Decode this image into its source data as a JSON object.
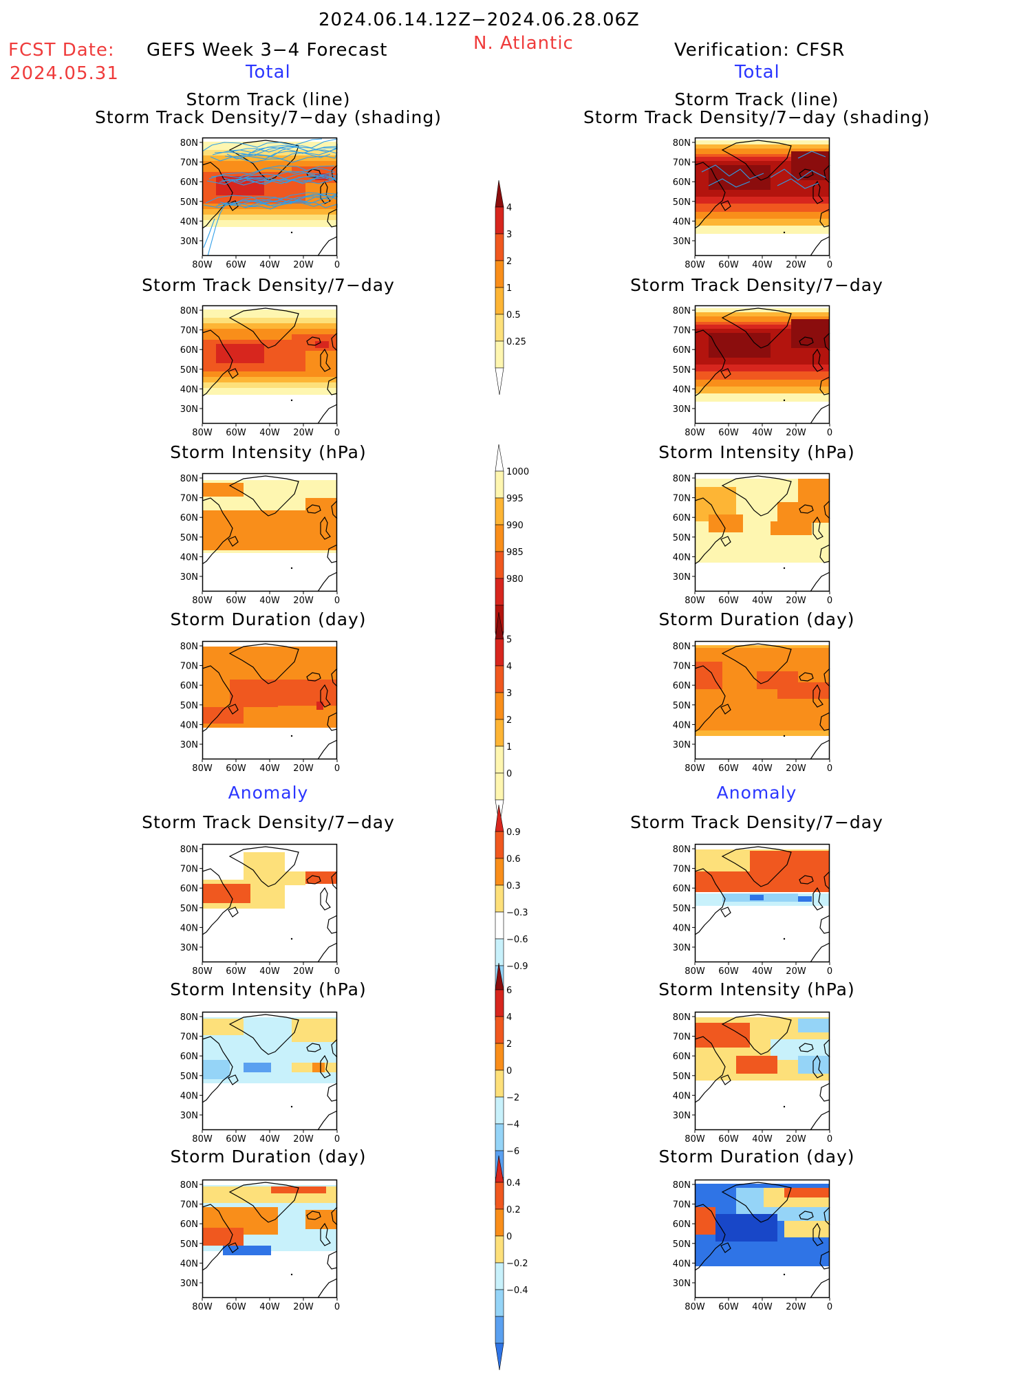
{
  "header": {
    "period": "2024.06.14.12Z−2024.06.28.06Z",
    "region": "N. Atlantic",
    "fcst_label": "FCST Date:",
    "fcst_date": "2024.05.31",
    "left_model": "GEFS Week 3−4 Forecast",
    "right_model": "Verification: CFSR",
    "left_section": "Total",
    "right_section": "Total"
  },
  "sections": {
    "anomaly_left": "Anomaly",
    "anomaly_right": "Anomaly"
  },
  "panel_titles": {
    "track_line": "Storm Track (line)",
    "track_shading": "Storm Track Density/7−day (shading)",
    "density": "Storm Track Density/7−day",
    "intensity": "Storm Intensity (hPa)",
    "duration": "Storm Duration (day)"
  },
  "axes": {
    "lat_labels": [
      "80N",
      "70N",
      "60N",
      "50N",
      "40N",
      "30N"
    ],
    "lon_labels": [
      "80W",
      "60W",
      "40W",
      "20W",
      "0"
    ]
  },
  "colors": {
    "yellow_light": "#fef6b0",
    "yellow": "#fde07a",
    "orange_light": "#fdb535",
    "orange": "#f98e1a",
    "orange_red": "#f0581f",
    "red": "#d7261e",
    "dark_red": "#b3140e",
    "maroon": "#8b0d0d",
    "cyan_light": "#c8f1fb",
    "blue_light": "#95d4f7",
    "blue": "#5aa0f0",
    "blue_mid": "#2f74e6",
    "blue_dark": "#1847c8",
    "track_line": "#2f9ee8"
  },
  "colorbars": [
    {
      "id": "density-total",
      "labels": [
        "4",
        "3",
        "2",
        "1",
        "0.5",
        "0.25"
      ]
    },
    {
      "id": "intensity-total",
      "labels": [
        "1000",
        "995",
        "990",
        "985",
        "980"
      ]
    },
    {
      "id": "duration-total",
      "labels": [
        "5",
        "4",
        "3",
        "2",
        "1",
        "0"
      ]
    },
    {
      "id": "density-anom",
      "labels": [
        "0.9",
        "0.6",
        "0.3",
        "−0.3",
        "−0.6",
        "−0.9"
      ]
    },
    {
      "id": "intensity-anom",
      "labels": [
        "6",
        "4",
        "2",
        "0",
        "−2",
        "−4",
        "−6"
      ]
    },
    {
      "id": "duration-anom",
      "labels": [
        "0.4",
        "0.2",
        "0",
        "−0.2",
        "−0.4"
      ]
    }
  ]
}
